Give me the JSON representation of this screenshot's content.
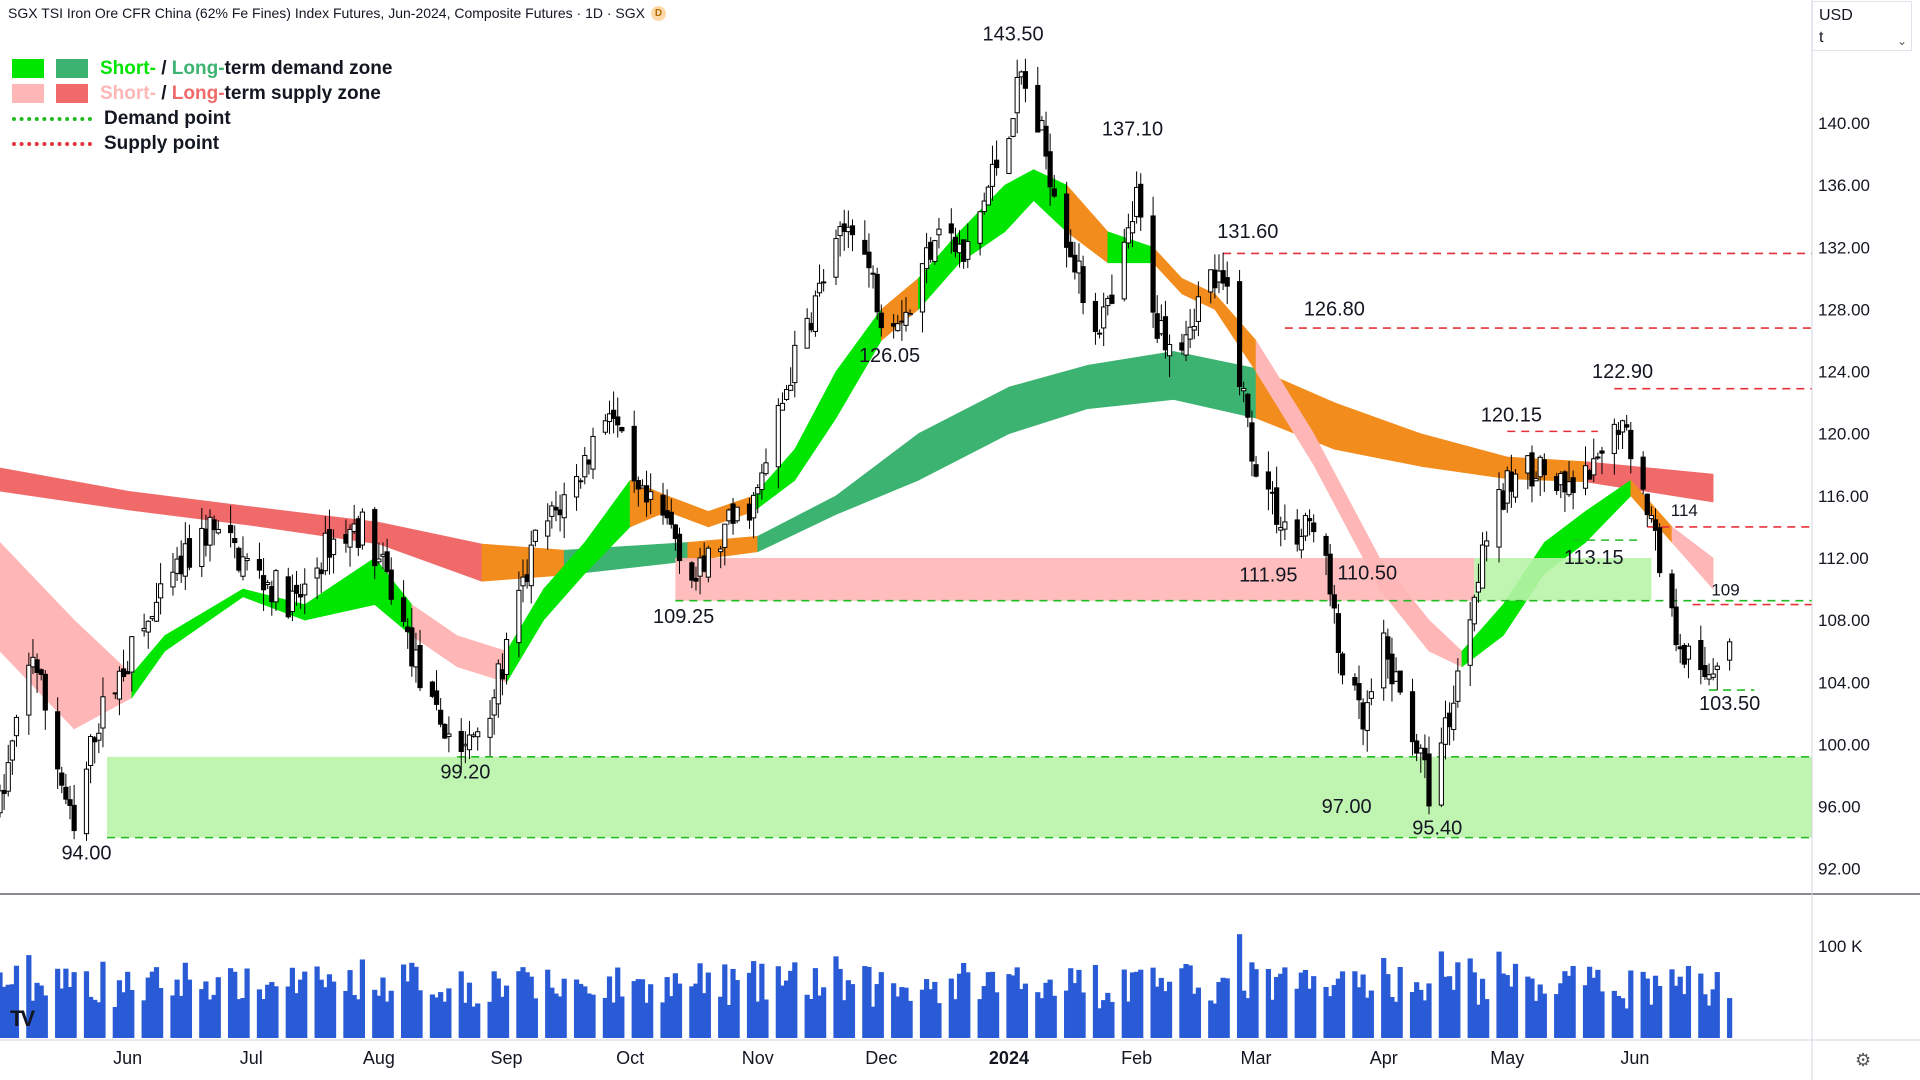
{
  "header": {
    "title": "SGX TSI Iron Ore CFR China (62% Fe Fines) Index Futures, Jun-2024, Composite Futures · 1D · SGX",
    "badge": "D"
  },
  "currency": {
    "code": "USD",
    "unit": "t"
  },
  "legend": {
    "demand_zone": {
      "short": "Short-",
      "sep": " / ",
      "long": "Long-",
      "rest": "term demand zone"
    },
    "supply_zone": {
      "short": "Short-",
      "sep": " / ",
      "long": "Long-",
      "rest": "term supply zone"
    },
    "demand_point": "Demand point",
    "supply_point": "Supply point"
  },
  "colors": {
    "short_demand": "#00e600",
    "long_demand": "#3cb371",
    "short_supply": "#ffb6b6",
    "long_supply": "#f06a6a",
    "demand_line": "#22bb22",
    "supply_line": "#e8303a",
    "candle": "#000000",
    "volume": "#2a5bd7",
    "orange": "#f28c1d"
  },
  "chart_data": {
    "type": "candlestick",
    "y_axis": {
      "ticks": [
        92,
        96,
        100,
        104,
        108,
        112,
        116,
        120,
        124,
        128,
        132,
        136,
        140
      ],
      "tick_labels": [
        "92.00",
        "96.00",
        "100.00",
        "104.00",
        "108.00",
        "112.00",
        "116.00",
        "120.00",
        "124.00",
        "128.00",
        "132.00",
        "136.00",
        "140.00"
      ],
      "ylim": [
        90.5,
        146.5
      ]
    },
    "x_axis": {
      "months": [
        "Jun",
        "Jul",
        "Aug",
        "Sep",
        "Oct",
        "Nov",
        "Dec",
        "2024",
        "Feb",
        "Mar",
        "Apr",
        "May",
        "Jun"
      ],
      "month_starts": [
        "2023-06-01",
        "2023-07-01",
        "2023-08-01",
        "2023-09-01",
        "2023-10-01",
        "2023-11-01",
        "2023-12-01",
        "2024-01-01",
        "2024-02-01",
        "2024-03-01",
        "2024-04-01",
        "2024-05-01",
        "2024-06-01"
      ],
      "xlim": [
        "2023-05-01",
        "2024-07-14"
      ]
    },
    "volume_axis": {
      "tick_label": "100 K",
      "tick_value": 100000,
      "max": 150000
    },
    "price_path": [
      [
        "2023-05-01",
        96
      ],
      [
        "2023-05-09",
        106
      ],
      [
        "2023-05-19",
        94
      ],
      [
        "2023-05-24",
        101
      ],
      [
        "2023-05-31",
        105
      ],
      [
        "2023-06-13",
        111
      ],
      [
        "2023-06-21",
        114
      ],
      [
        "2023-07-02",
        111
      ],
      [
        "2023-07-12",
        109
      ],
      [
        "2023-07-20",
        113
      ],
      [
        "2023-07-28",
        114
      ],
      [
        "2023-08-04",
        110
      ],
      [
        "2023-08-14",
        102
      ],
      [
        "2023-08-22",
        99.5
      ],
      [
        "2023-08-30",
        104
      ],
      [
        "2023-09-08",
        113
      ],
      [
        "2023-09-18",
        117
      ],
      [
        "2023-09-26",
        122
      ],
      [
        "2023-10-02",
        116
      ],
      [
        "2023-10-11",
        114
      ],
      [
        "2023-10-17",
        110.5
      ],
      [
        "2023-10-25",
        114
      ],
      [
        "2023-11-01",
        116
      ],
      [
        "2023-11-09",
        124
      ],
      [
        "2023-11-17",
        130
      ],
      [
        "2023-11-24",
        134
      ],
      [
        "2023-12-01",
        128
      ],
      [
        "2023-12-08",
        128
      ],
      [
        "2023-12-15",
        134
      ],
      [
        "2023-12-21",
        131
      ],
      [
        "2023-12-31",
        139
      ],
      [
        "2024-01-04",
        143
      ],
      [
        "2024-01-09",
        139
      ],
      [
        "2024-01-15",
        133
      ],
      [
        "2024-01-21",
        127
      ],
      [
        "2024-01-26",
        128
      ],
      [
        "2024-02-01",
        135
      ],
      [
        "2024-02-06",
        127
      ],
      [
        "2024-02-11",
        126
      ],
      [
        "2024-02-19",
        130
      ],
      [
        "2024-02-23",
        129
      ],
      [
        "2024-02-29",
        119
      ],
      [
        "2024-03-06",
        115
      ],
      [
        "2024-03-11",
        113
      ],
      [
        "2024-03-16",
        115
      ],
      [
        "2024-03-21",
        106
      ],
      [
        "2024-03-27",
        101
      ],
      [
        "2024-04-01",
        106
      ],
      [
        "2024-04-08",
        101
      ],
      [
        "2024-04-12",
        97
      ],
      [
        "2024-04-18",
        103
      ],
      [
        "2024-04-25",
        113
      ],
      [
        "2024-05-02",
        117
      ],
      [
        "2024-05-08",
        118
      ],
      [
        "2024-05-15",
        116
      ],
      [
        "2024-05-20",
        117
      ],
      [
        "2024-05-24",
        118
      ],
      [
        "2024-05-28",
        121
      ],
      [
        "2024-06-03",
        117
      ],
      [
        "2024-06-10",
        108
      ],
      [
        "2024-06-17",
        104
      ],
      [
        "2024-06-24",
        107
      ]
    ],
    "bands": [
      {
        "name": "short-term band",
        "points": [
          [
            "2023-05-01",
            113,
            106
          ],
          [
            "2023-05-19",
            108,
            101
          ],
          [
            "2023-06-02",
            104.5,
            103
          ],
          [
            "2023-06-10",
            107,
            106
          ],
          [
            "2023-06-29",
            110,
            109.5
          ],
          [
            "2023-07-14",
            109,
            108
          ],
          [
            "2023-07-31",
            112,
            109
          ],
          [
            "2023-08-09",
            109,
            107
          ],
          [
            "2023-08-20",
            107,
            105
          ],
          [
            "2023-09-01",
            106,
            104
          ],
          [
            "2023-09-10",
            110,
            108
          ],
          [
            "2023-09-20",
            113,
            111
          ],
          [
            "2023-10-01",
            117,
            114
          ],
          [
            "2023-10-10",
            116,
            115
          ],
          [
            "2023-10-20",
            115,
            114
          ],
          [
            "2023-10-31",
            116,
            115
          ],
          [
            "2023-11-10",
            119,
            117
          ],
          [
            "2023-11-20",
            124,
            121
          ],
          [
            "2023-12-01",
            128,
            126
          ],
          [
            "2023-12-10",
            130,
            128
          ],
          [
            "2023-12-20",
            133,
            131
          ],
          [
            "2023-12-31",
            136,
            133
          ],
          [
            "2024-01-07",
            137,
            135
          ],
          [
            "2024-01-15",
            136,
            133
          ],
          [
            "2024-01-25",
            133,
            131
          ],
          [
            "2024-02-05",
            132,
            131
          ],
          [
            "2024-02-12",
            130,
            129
          ],
          [
            "2024-02-20",
            129,
            128
          ],
          [
            "2024-03-01",
            126,
            124
          ],
          [
            "2024-03-15",
            120,
            118
          ],
          [
            "2024-03-31",
            112,
            110
          ],
          [
            "2024-04-12",
            108,
            106
          ],
          [
            "2024-04-20",
            106,
            105
          ],
          [
            "2024-04-30",
            109,
            107
          ],
          [
            "2024-05-10",
            113,
            111
          ],
          [
            "2024-05-20",
            115,
            113
          ],
          [
            "2024-05-31",
            117,
            116
          ],
          [
            "2024-06-10",
            114,
            113
          ],
          [
            "2024-06-20",
            112,
            110
          ]
        ]
      },
      {
        "name": "long-term band",
        "points": [
          [
            "2023-05-01",
            117.8,
            116.3
          ],
          [
            "2023-06-01",
            116.3,
            115.1
          ],
          [
            "2023-07-01",
            115.3,
            114.1
          ],
          [
            "2023-08-01",
            114.3,
            112.9
          ],
          [
            "2023-08-26",
            112.9,
            110.5
          ],
          [
            "2023-09-15",
            112.5,
            110.9
          ],
          [
            "2023-10-15",
            113,
            111.8
          ],
          [
            "2023-11-01",
            113.4,
            112.4
          ],
          [
            "2023-11-20",
            116,
            114.8
          ],
          [
            "2023-12-10",
            120,
            117
          ],
          [
            "2024-01-01",
            123,
            120
          ],
          [
            "2024-01-20",
            124.4,
            121.6
          ],
          [
            "2024-02-10",
            125.3,
            122.2
          ],
          [
            "2024-03-01",
            124.2,
            121
          ],
          [
            "2024-03-20",
            122,
            119
          ],
          [
            "2024-04-10",
            120,
            117.9
          ],
          [
            "2024-05-01",
            118.5,
            117.1
          ],
          [
            "2024-05-20",
            118.2,
            116.9
          ],
          [
            "2024-06-20",
            117.4,
            115.6
          ]
        ]
      }
    ],
    "supply_zones": [
      {
        "from": "2023-10-12",
        "to": "2024-04-23",
        "top": 112,
        "bottom": 109.25
      }
    ],
    "demand_zones": [
      {
        "from": "2023-05-27",
        "to": "2024-07-14",
        "top": 99.2,
        "bottom": 94
      },
      {
        "from": "2024-04-23",
        "to": "2024-06-05",
        "top": 112,
        "bottom": 109.25
      }
    ],
    "supply_points": [
      {
        "price": 131.6,
        "from": "2024-02-22"
      },
      {
        "price": 126.8,
        "from": "2024-03-08"
      },
      {
        "price": 122.9,
        "from": "2024-05-27"
      },
      {
        "price": 120.15,
        "from": "2024-05-01",
        "to": "2024-05-23"
      },
      {
        "price": 114,
        "from": "2024-06-04"
      },
      {
        "price": 109,
        "from": "2024-06-15"
      }
    ],
    "demand_points": [
      {
        "price": 99.2,
        "from": "2023-08-20"
      },
      {
        "price": 94,
        "from": "2023-05-27"
      },
      {
        "price": 109.25,
        "from": "2023-10-12"
      },
      {
        "price": 113.15,
        "from": "2024-05-17",
        "to": "2024-06-03"
      },
      {
        "price": 103.5,
        "from": "2024-06-19",
        "to": "2024-06-30"
      }
    ],
    "annotations": [
      {
        "text": "143.50",
        "date": "2024-01-02",
        "price": 145.3
      },
      {
        "text": "137.10",
        "date": "2024-01-31",
        "price": 139.2
      },
      {
        "text": "131.60",
        "date": "2024-02-28",
        "price": 132.6
      },
      {
        "text": "126.80",
        "date": "2024-03-20",
        "price": 127.6
      },
      {
        "text": "126.05",
        "date": "2023-12-03",
        "price": 124.6
      },
      {
        "text": "122.90",
        "date": "2024-05-29",
        "price": 123.6
      },
      {
        "text": "120.15",
        "date": "2024-05-02",
        "price": 120.8
      },
      {
        "text": "114",
        "date": "2024-06-13",
        "price": 114.7
      },
      {
        "text": "113.15",
        "date": "2024-05-22",
        "price": 111.6
      },
      {
        "text": "111.95",
        "date": "2024-03-04",
        "price": 110.5
      },
      {
        "text": "110.50",
        "date": "2024-03-28",
        "price": 110.6
      },
      {
        "text": "109",
        "date": "2024-06-23",
        "price": 109.6
      },
      {
        "text": "109.25",
        "date": "2023-10-14",
        "price": 107.8
      },
      {
        "text": "103.50",
        "date": "2024-06-24",
        "price": 102.2
      },
      {
        "text": "99.20",
        "date": "2023-08-22",
        "price": 97.8
      },
      {
        "text": "97.00",
        "date": "2024-03-23",
        "price": 95.6
      },
      {
        "text": "95.40",
        "date": "2024-04-14",
        "price": 94.2
      },
      {
        "text": "94.00",
        "date": "2023-05-22",
        "price": 92.6
      }
    ]
  }
}
